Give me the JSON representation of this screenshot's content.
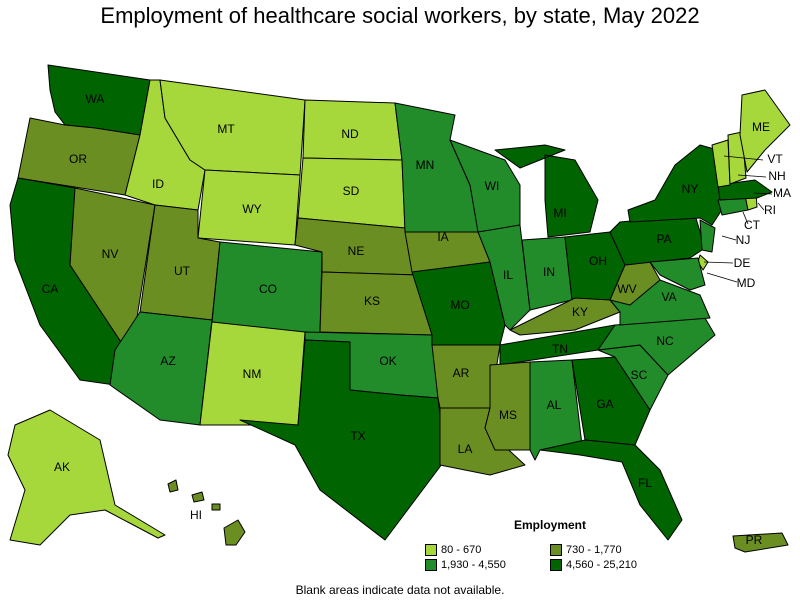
{
  "title": "Employment of healthcare social workers, by state, May 2022",
  "footnote": "Blank areas indicate data not available.",
  "legend": {
    "title": "Employment",
    "items": [
      {
        "label": "80 - 670",
        "color": "#a6d83c"
      },
      {
        "label": "730 - 1,770",
        "color": "#6b8e23"
      },
      {
        "label": "1,930 - 4,550",
        "color": "#228b2a"
      },
      {
        "label": "4,560 - 25,210",
        "color": "#006400"
      }
    ]
  },
  "chart_data": {
    "type": "choropleth",
    "classes": [
      "80 - 670",
      "730 - 1,770",
      "1,930 - 4,550",
      "4,560 - 25,210"
    ],
    "states": [
      {
        "abbr": "WA",
        "class": 3
      },
      {
        "abbr": "OR",
        "class": 1
      },
      {
        "abbr": "CA",
        "class": 3
      },
      {
        "abbr": "NV",
        "class": 1
      },
      {
        "abbr": "ID",
        "class": 0
      },
      {
        "abbr": "MT",
        "class": 0
      },
      {
        "abbr": "WY",
        "class": 0
      },
      {
        "abbr": "UT",
        "class": 1
      },
      {
        "abbr": "AZ",
        "class": 2
      },
      {
        "abbr": "CO",
        "class": 2
      },
      {
        "abbr": "NM",
        "class": 0
      },
      {
        "abbr": "ND",
        "class": 0
      },
      {
        "abbr": "SD",
        "class": 0
      },
      {
        "abbr": "NE",
        "class": 1
      },
      {
        "abbr": "KS",
        "class": 1
      },
      {
        "abbr": "OK",
        "class": 2
      },
      {
        "abbr": "TX",
        "class": 3
      },
      {
        "abbr": "MN",
        "class": 2
      },
      {
        "abbr": "IA",
        "class": 1
      },
      {
        "abbr": "MO",
        "class": 3
      },
      {
        "abbr": "AR",
        "class": 1
      },
      {
        "abbr": "LA",
        "class": 1
      },
      {
        "abbr": "WI",
        "class": 2
      },
      {
        "abbr": "IL",
        "class": 2
      },
      {
        "abbr": "MI",
        "class": 3
      },
      {
        "abbr": "IN",
        "class": 2
      },
      {
        "abbr": "OH",
        "class": 3
      },
      {
        "abbr": "KY",
        "class": 1
      },
      {
        "abbr": "TN",
        "class": 3
      },
      {
        "abbr": "MS",
        "class": 1
      },
      {
        "abbr": "AL",
        "class": 2
      },
      {
        "abbr": "GA",
        "class": 3
      },
      {
        "abbr": "FL",
        "class": 3
      },
      {
        "abbr": "SC",
        "class": 2
      },
      {
        "abbr": "NC",
        "class": 2
      },
      {
        "abbr": "VA",
        "class": 2
      },
      {
        "abbr": "WV",
        "class": 1
      },
      {
        "abbr": "PA",
        "class": 3
      },
      {
        "abbr": "NY",
        "class": 3
      },
      {
        "abbr": "NJ",
        "class": 2
      },
      {
        "abbr": "DE",
        "class": 0
      },
      {
        "abbr": "MD",
        "class": 2
      },
      {
        "abbr": "CT",
        "class": 2
      },
      {
        "abbr": "RI",
        "class": 0
      },
      {
        "abbr": "MA",
        "class": 3
      },
      {
        "abbr": "VT",
        "class": 0
      },
      {
        "abbr": "NH",
        "class": 0
      },
      {
        "abbr": "ME",
        "class": 0
      },
      {
        "abbr": "AK",
        "class": 0
      },
      {
        "abbr": "HI",
        "class": 1
      },
      {
        "abbr": "PR",
        "class": 1
      }
    ]
  }
}
